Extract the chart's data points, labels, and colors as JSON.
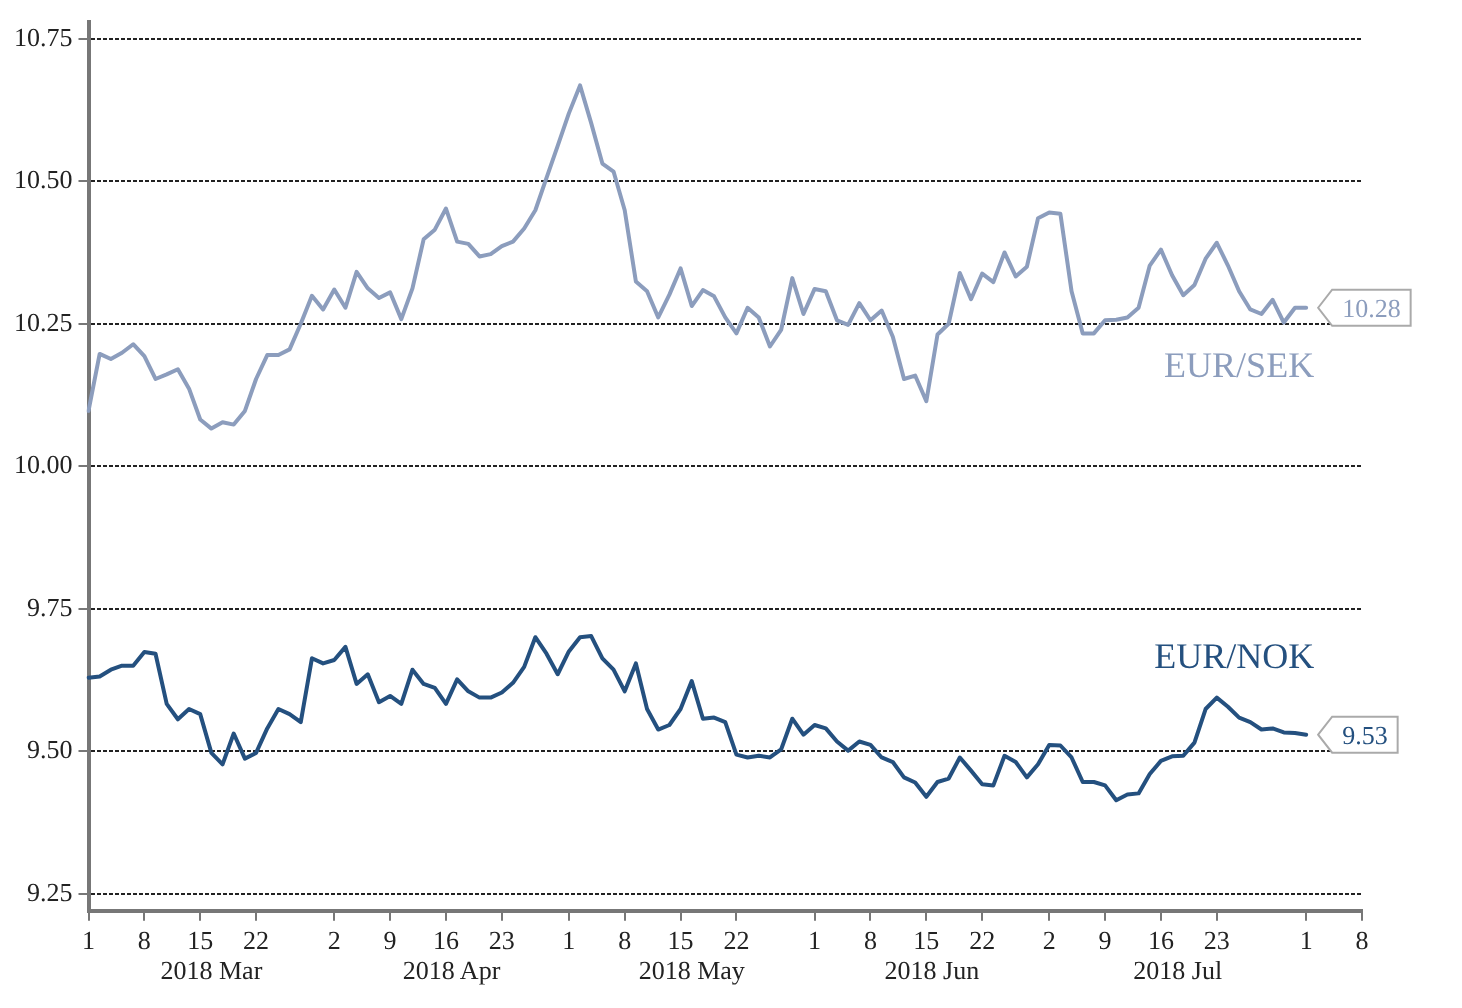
{
  "chart_data": {
    "type": "line",
    "categories": [
      "1",
      null,
      null,
      null,
      null,
      "8",
      null,
      null,
      null,
      null,
      "15",
      null,
      null,
      null,
      null,
      "22",
      null,
      null,
      null,
      null,
      null,
      null,
      "2",
      null,
      null,
      null,
      null,
      "9",
      null,
      null,
      null,
      null,
      "16",
      null,
      null,
      null,
      null,
      "23",
      null,
      null,
      null,
      null,
      null,
      "1",
      null,
      null,
      null,
      null,
      "8",
      null,
      null,
      null,
      null,
      "15",
      null,
      null,
      null,
      null,
      "22",
      null,
      null,
      null,
      null,
      null,
      null,
      "1",
      null,
      null,
      null,
      null,
      "8",
      null,
      null,
      null,
      null,
      "15",
      null,
      null,
      null,
      null,
      "22",
      null,
      null,
      null,
      null,
      null,
      "2",
      null,
      null,
      null,
      null,
      "9",
      null,
      null,
      null,
      null,
      "16",
      null,
      null,
      null,
      null,
      "23",
      null,
      null,
      null,
      null,
      null,
      null,
      null,
      "1",
      null,
      null,
      null,
      null,
      "8"
    ],
    "series": [
      {
        "name": "EUR/SEK",
        "color": "#8c9dbd",
        "values": [
          10.097,
          10.197,
          10.188,
          10.199,
          10.214,
          10.193,
          10.153,
          10.161,
          10.17,
          10.136,
          10.082,
          10.066,
          10.077,
          10.073,
          10.097,
          10.153,
          10.195,
          10.195,
          10.205,
          10.25,
          10.299,
          10.275,
          10.31,
          10.278,
          10.341,
          10.312,
          10.295,
          10.305,
          10.258,
          10.312,
          10.398,
          10.415,
          10.452,
          10.394,
          10.39,
          10.368,
          10.372,
          10.386,
          10.394,
          10.417,
          10.449,
          10.506,
          10.562,
          10.619,
          10.668,
          10.602,
          10.531,
          10.517,
          10.449,
          10.324,
          10.307,
          10.261,
          10.301,
          10.347,
          10.281,
          10.309,
          10.298,
          10.261,
          10.233,
          10.278,
          10.261,
          10.21,
          10.239,
          10.33,
          10.267,
          10.311,
          10.307,
          10.256,
          10.248,
          10.286,
          10.256,
          10.273,
          10.227,
          10.153,
          10.159,
          10.114,
          10.231,
          10.25,
          10.339,
          10.293,
          10.338,
          10.323,
          10.375,
          10.333,
          10.35,
          10.435,
          10.445,
          10.443,
          10.307,
          10.233,
          10.233,
          10.256,
          10.257,
          10.261,
          10.278,
          10.352,
          10.38,
          10.335,
          10.3,
          10.318,
          10.364,
          10.392,
          10.352,
          10.307,
          10.275,
          10.267,
          10.292,
          10.252,
          10.278,
          10.278,
          null,
          null,
          null,
          null,
          null
        ],
        "value_labels": [
          null,
          null,
          null,
          null,
          null,
          null,
          null,
          null,
          null,
          null,
          null,
          null,
          null,
          null,
          null,
          null,
          null,
          null,
          null,
          null,
          null,
          null,
          null,
          null,
          null,
          null,
          null,
          null,
          null,
          null,
          null,
          null,
          null,
          null,
          null,
          null,
          null,
          null,
          null,
          null,
          null,
          null,
          null,
          null,
          null,
          null,
          null,
          null,
          null,
          null,
          null,
          null,
          null,
          null,
          null,
          null,
          null,
          null,
          null,
          null,
          null,
          null,
          null,
          null,
          null,
          null,
          null,
          null,
          null,
          null,
          null,
          null,
          null,
          null,
          null,
          null,
          null,
          null,
          null,
          null,
          null,
          null,
          null,
          null,
          null,
          null,
          null,
          null,
          null,
          null,
          null,
          null,
          null,
          null,
          null,
          null,
          null,
          null,
          null,
          null,
          null,
          null,
          null,
          null,
          null,
          null,
          null,
          null,
          null,
          "10.28",
          null,
          null,
          null,
          null,
          null
        ]
      },
      {
        "name": "EUR/NOK",
        "color": "#24507f",
        "values": [
          9.629,
          9.631,
          9.643,
          9.65,
          9.65,
          9.674,
          9.671,
          9.583,
          9.556,
          9.574,
          9.565,
          9.497,
          9.477,
          9.531,
          9.487,
          9.497,
          9.54,
          9.574,
          9.565,
          9.551,
          9.663,
          9.654,
          9.66,
          9.683,
          9.618,
          9.635,
          9.586,
          9.597,
          9.583,
          9.643,
          9.618,
          9.611,
          9.583,
          9.626,
          9.605,
          9.594,
          9.594,
          9.603,
          9.62,
          9.648,
          9.7,
          9.671,
          9.635,
          9.675,
          9.7,
          9.702,
          9.663,
          9.643,
          9.605,
          9.654,
          9.574,
          9.538,
          9.546,
          9.574,
          9.623,
          9.557,
          9.559,
          9.551,
          9.494,
          9.489,
          9.492,
          9.489,
          9.503,
          9.557,
          9.529,
          9.546,
          9.54,
          9.517,
          9.501,
          9.517,
          9.511,
          9.489,
          9.481,
          9.454,
          9.445,
          9.42,
          9.446,
          9.452,
          9.489,
          9.466,
          9.442,
          9.44,
          9.492,
          9.481,
          9.454,
          9.477,
          9.511,
          9.51,
          9.489,
          9.446,
          9.446,
          9.44,
          9.414,
          9.424,
          9.426,
          9.46,
          9.483,
          9.491,
          9.492,
          9.515,
          9.574,
          9.594,
          9.578,
          9.559,
          9.551,
          9.538,
          9.54,
          9.533,
          9.532,
          9.529,
          null,
          null,
          null,
          null,
          null
        ],
        "value_labels": [
          null,
          null,
          null,
          null,
          null,
          null,
          null,
          null,
          null,
          null,
          null,
          null,
          null,
          null,
          null,
          null,
          null,
          null,
          null,
          null,
          null,
          null,
          null,
          null,
          null,
          null,
          null,
          null,
          null,
          null,
          null,
          null,
          null,
          null,
          null,
          null,
          null,
          null,
          null,
          null,
          null,
          null,
          null,
          null,
          null,
          null,
          null,
          null,
          null,
          null,
          null,
          null,
          null,
          null,
          null,
          null,
          null,
          null,
          null,
          null,
          null,
          null,
          null,
          null,
          null,
          null,
          null,
          null,
          null,
          null,
          null,
          null,
          null,
          null,
          null,
          null,
          null,
          null,
          null,
          null,
          null,
          null,
          null,
          null,
          null,
          null,
          null,
          null,
          null,
          null,
          null,
          null,
          null,
          null,
          null,
          null,
          null,
          null,
          null,
          null,
          null,
          null,
          null,
          null,
          null,
          null,
          null,
          null,
          null,
          "9.53",
          null,
          null,
          null,
          null,
          null
        ]
      }
    ],
    "ylim": [
      9.22,
      10.78
    ],
    "yticks": [
      9.25,
      {
        "value": 9.5,
        "label": "9.50"
      },
      9.75,
      {
        "value": 10,
        "label": "10.00"
      },
      {
        "value": 10.25,
        "label": "10.25"
      },
      {
        "value": 10.5,
        "label": "10.50"
      },
      10.75
    ],
    "grid": "y",
    "legend": false,
    "marker": "none",
    "line_style": "solid",
    "annotations": [
      "2018 Mar",
      "2018 Apr",
      "2018 May",
      "2018 Jun",
      "2018 Jul"
    ]
  }
}
